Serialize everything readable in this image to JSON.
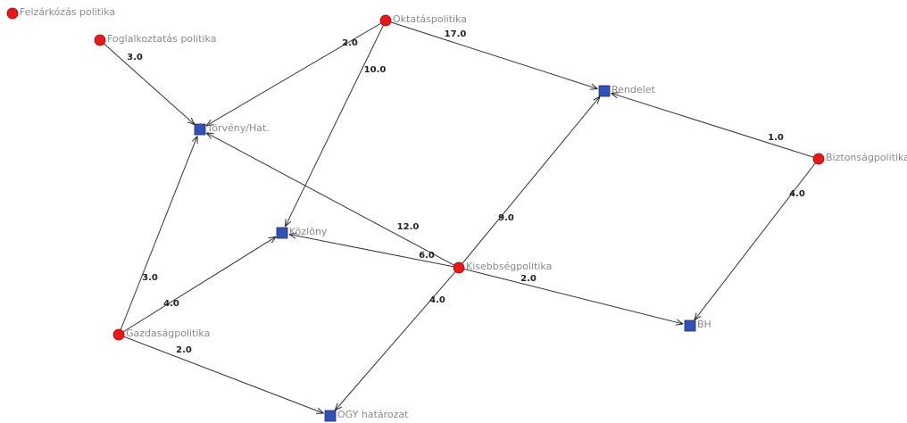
{
  "nodes": [
    {
      "label": "Felzárkózás politika",
      "shape": "circle"
    },
    {
      "label": "Foglalkoztatás politika",
      "shape": "circle"
    },
    {
      "label": "Oktatáspolitika",
      "shape": "circle"
    },
    {
      "label": "Törvény/Hat.",
      "shape": "square"
    },
    {
      "label": "Rendelet",
      "shape": "square"
    },
    {
      "label": "Biztonságpolitika",
      "shape": "circle"
    },
    {
      "label": "Közlöny",
      "shape": "square"
    },
    {
      "label": "Kisebbségpolitika",
      "shape": "circle"
    },
    {
      "label": "BH",
      "shape": "square"
    },
    {
      "label": "Gazdaságpolitika",
      "shape": "circle"
    },
    {
      "label": "OGY határozat",
      "shape": "square"
    }
  ],
  "edges": [
    {
      "source": 1,
      "target": 3,
      "label": "3.0"
    },
    {
      "source": 2,
      "target": 3,
      "label": "2.0"
    },
    {
      "source": 2,
      "target": 6,
      "label": "10.0"
    },
    {
      "source": 2,
      "target": 4,
      "label": "17.0"
    },
    {
      "source": 5,
      "target": 4,
      "label": "1.0"
    },
    {
      "source": 5,
      "target": 8,
      "label": "4.0"
    },
    {
      "source": 7,
      "target": 3,
      "label": "12.0"
    },
    {
      "source": 7,
      "target": 6,
      "label": "6.0"
    },
    {
      "source": 7,
      "target": 4,
      "label": "9.0"
    },
    {
      "source": 7,
      "target": 8,
      "label": "2.0"
    },
    {
      "source": 7,
      "target": 10,
      "label": "4.0"
    },
    {
      "source": 9,
      "target": 3,
      "label": "3.0"
    },
    {
      "source": 9,
      "target": 6,
      "label": "4.0"
    },
    {
      "source": 9,
      "target": 10,
      "label": "2.0"
    }
  ]
}
